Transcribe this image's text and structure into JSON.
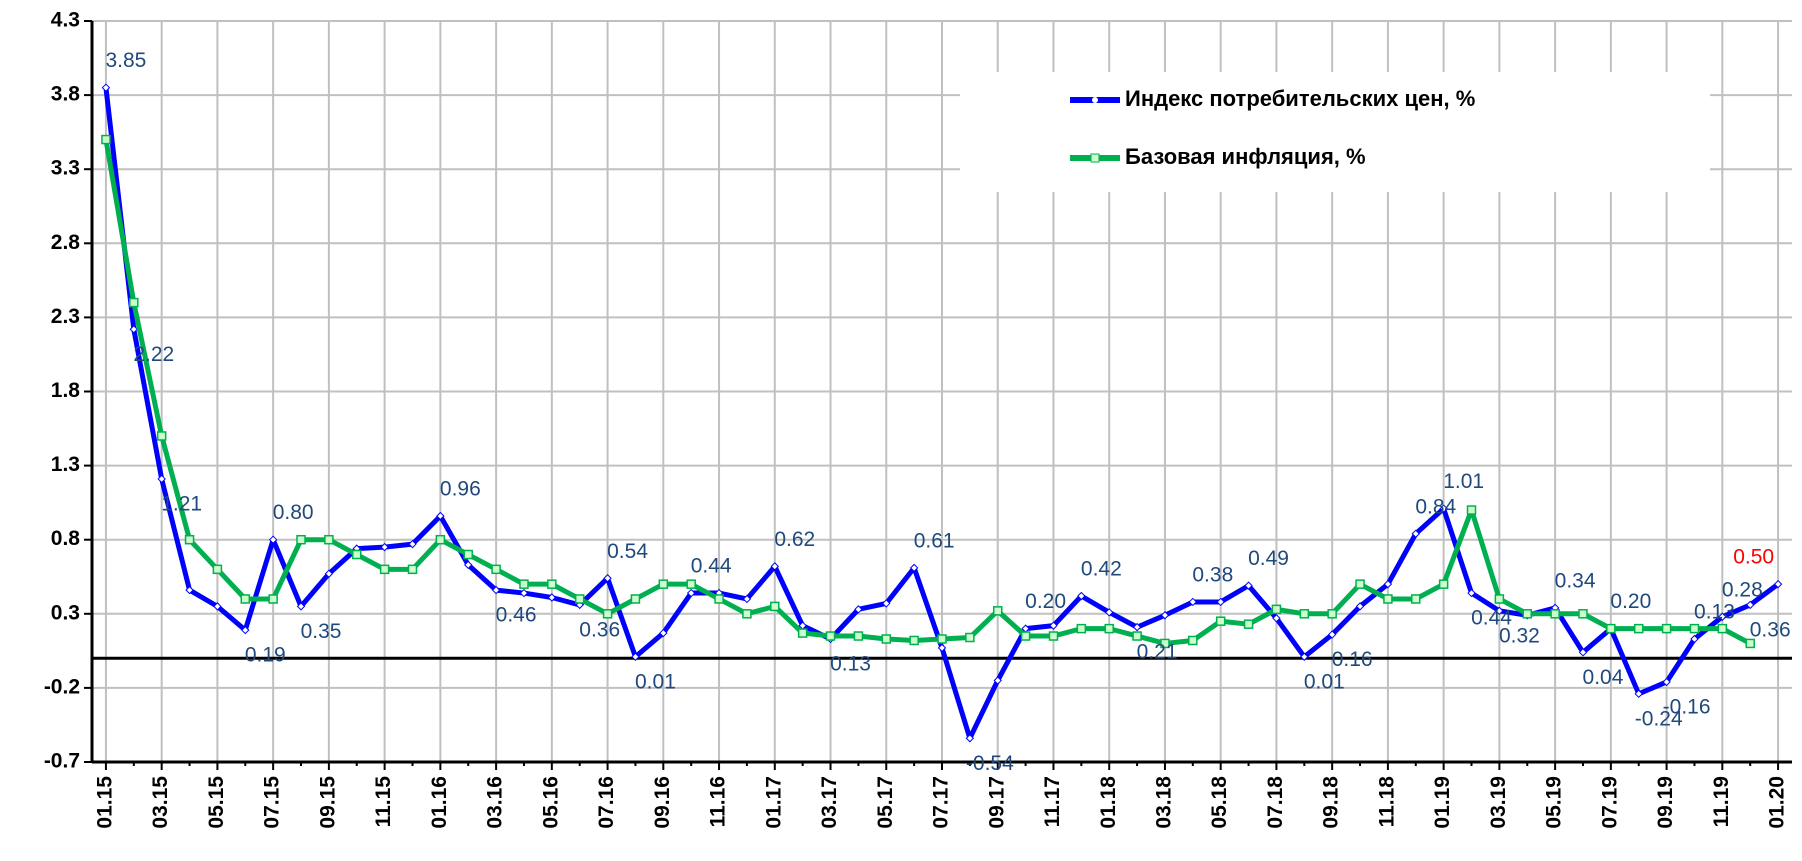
{
  "chart_data": {
    "type": "line",
    "categories": [
      "01.15",
      null,
      "03.15",
      null,
      "05.15",
      null,
      "07.15",
      null,
      "09.15",
      null,
      "11.15",
      null,
      "01.16",
      null,
      "03.16",
      null,
      "05.16",
      null,
      "07.16",
      null,
      "09.16",
      null,
      "11.16",
      null,
      "01.17",
      null,
      "03.17",
      null,
      "05.17",
      null,
      "07.17",
      null,
      "09.17",
      null,
      "11.17",
      null,
      "01.18",
      null,
      "03.18",
      null,
      "05.18",
      null,
      "07.18",
      null,
      "09.18",
      null,
      "11.18",
      null,
      "01.19",
      null,
      "03.19",
      null,
      "05.19",
      null,
      "07.19",
      null,
      "09.19",
      null,
      "11.19",
      null,
      "01.20"
    ],
    "series": [
      {
        "name": "Индекс потребительских цен, %",
        "color": "#0000ff",
        "marker": "diamond",
        "values": [
          3.85,
          2.22,
          1.21,
          0.46,
          0.35,
          0.19,
          0.8,
          0.35,
          0.57,
          0.74,
          0.75,
          0.77,
          0.96,
          0.63,
          0.46,
          0.44,
          0.41,
          0.36,
          0.54,
          0.01,
          0.17,
          0.44,
          0.44,
          0.4,
          0.62,
          0.22,
          0.13,
          0.33,
          0.37,
          0.61,
          0.07,
          -0.54,
          -0.15,
          0.2,
          0.22,
          0.42,
          0.31,
          0.21,
          0.29,
          0.38,
          0.38,
          0.49,
          0.27,
          0.01,
          0.16,
          0.35,
          0.5,
          0.84,
          1.01,
          0.44,
          0.32,
          0.29,
          0.34,
          0.04,
          0.2,
          -0.24,
          -0.16,
          0.13,
          0.28,
          0.36,
          0.5
        ],
        "value_labels": [
          "3.85",
          "2.22",
          "1.21",
          null,
          null,
          "0.19",
          "0.80",
          "0.35",
          null,
          null,
          null,
          null,
          "0.96",
          null,
          "0.46",
          null,
          null,
          "0.36",
          "0.54",
          "0.01",
          null,
          "0.44",
          null,
          null,
          "0.62",
          null,
          "0.13",
          null,
          null,
          "0.61",
          null,
          "-0.54",
          null,
          "0.20",
          null,
          "0.42",
          null,
          "0.21",
          null,
          "0.38",
          null,
          "0.49",
          null,
          "0.01",
          "0.16",
          null,
          null,
          "0.84",
          "1.01",
          "0.44",
          "0.32",
          null,
          "0.34",
          "0.04",
          "0.20",
          "-0.24",
          "-0.16",
          "0.13",
          "0.28",
          "0.36",
          "0.50"
        ]
      },
      {
        "name": "Базовая инфляция, %",
        "color": "#00b050",
        "marker": "square",
        "values": [
          3.5,
          2.4,
          1.5,
          0.8,
          0.6,
          0.4,
          0.4,
          0.8,
          0.8,
          0.7,
          0.6,
          0.6,
          0.8,
          0.7,
          0.6,
          0.5,
          0.5,
          0.4,
          0.3,
          0.4,
          0.5,
          0.5,
          0.4,
          0.3,
          0.35,
          0.17,
          0.15,
          0.15,
          0.13,
          0.12,
          0.13,
          0.14,
          0.32,
          0.15,
          0.15,
          0.2,
          0.2,
          0.15,
          0.1,
          0.12,
          0.25,
          0.23,
          0.33,
          0.3,
          0.3,
          0.5,
          0.4,
          0.4,
          0.5,
          1.0,
          0.4,
          0.3,
          0.3,
          0.3,
          0.2,
          0.2,
          0.2,
          0.2,
          0.2,
          0.1,
          null
        ]
      }
    ],
    "ylim": [
      -0.7,
      4.3
    ],
    "yticks": [
      -0.7,
      -0.2,
      0.3,
      0.8,
      1.3,
      1.8,
      2.3,
      2.8,
      3.3,
      3.8,
      4.3
    ],
    "grid": true,
    "legend": "top-right"
  }
}
